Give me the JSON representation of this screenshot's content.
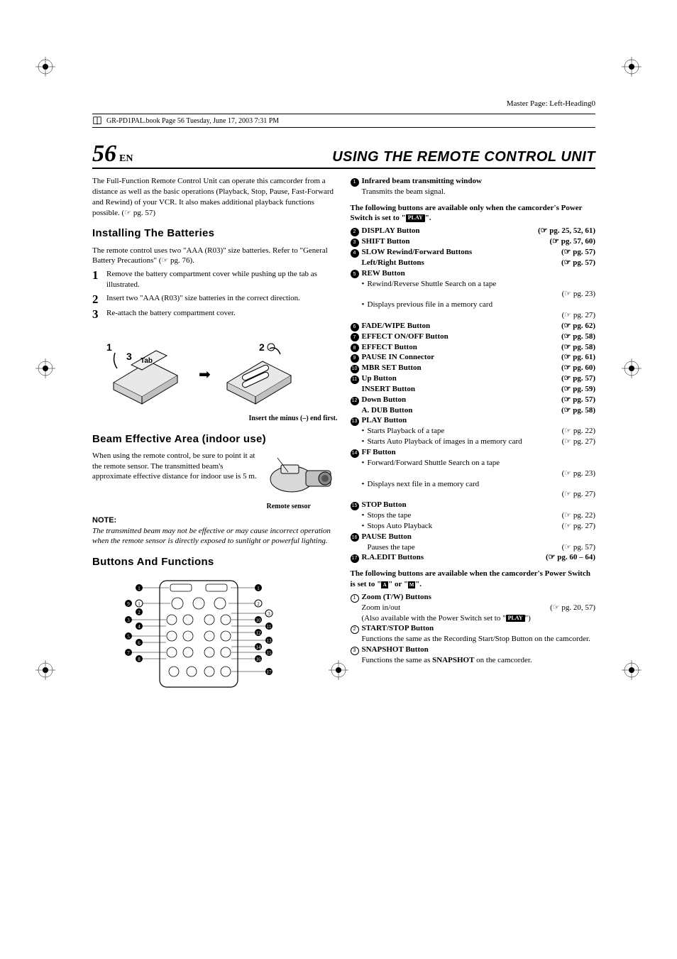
{
  "master_page": "Master Page: Left-Heading0",
  "book_line": "GR-PD1PAL.book  Page 56  Tuesday, June 17, 2003  7:31 PM",
  "page_number": "56",
  "page_lang": "EN",
  "header_title": "USING THE REMOTE CONTROL UNIT",
  "intro": "The Full-Function Remote Control Unit can operate this camcorder from a distance as well as the basic operations (Playback, Stop, Pause, Fast-Forward and Rewind) of your VCR. It also makes additional playback functions possible. (☞ pg. 57)",
  "sec_install": "Installing The Batteries",
  "install_p": "The remote control uses two \"AAA (R03)\" size batteries. Refer to \"General Battery Precautions\" (☞ pg. 76).",
  "steps": [
    "Remove the battery compartment cover while pushing up the tab as illustrated.",
    "Insert two \"AAA (R03)\" size batteries in the correct direction.",
    "Re-attach the battery compartment cover."
  ],
  "fig1_labels": {
    "n1": "1",
    "n2": "2",
    "n3": "3",
    "tab": "Tab"
  },
  "fig1_caption": "Insert the minus (–) end first.",
  "sec_beam": "Beam Effective Area (indoor use)",
  "beam_p": "When using the remote control, be sure to point it at the remote sensor. The transmitted beam's approximate effective distance for indoor use is 5 m.",
  "beam_caption": "Remote sensor",
  "note_h": "NOTE:",
  "note_p": "The transmitted beam may not be effective or may cause incorrect operation when the remote sensor is directly exposed to sunlight or powerful lighting.",
  "sec_btns": "Buttons And Functions",
  "right_item1_label": "Infrared beam transmitting window",
  "right_item1_sub": "Transmits the beam signal.",
  "section2_intro_a": "The following buttons are available only when the camcorder's Power Switch is set to \"",
  "section2_intro_b": "\".",
  "play_text": "PLAY",
  "btns": [
    {
      "n": "2",
      "label": "DISPLAY Button",
      "ref": "(☞ pg. 25, 52, 61)"
    },
    {
      "n": "3",
      "label": "SHIFT Button",
      "ref": "(☞ pg. 57, 60)"
    },
    {
      "n": "4",
      "label": "SLOW Rewind/Forward Buttons",
      "ref": "(☞ pg. 57)"
    },
    {
      "n": "",
      "label": "Left/Right Buttons",
      "ref": "(☞ pg. 57)",
      "noNum": true
    }
  ],
  "rew_label": "REW Button",
  "rew_sub1": "Rewind/Reverse Shuttle Search on a tape",
  "rew_ref1": "(☞ pg. 23)",
  "rew_sub2": "Displays previous file in a memory card",
  "rew_ref2": "(☞ pg. 27)",
  "btns2": [
    {
      "n": "6",
      "label": "FADE/WIPE Button",
      "ref": "(☞ pg. 62)"
    },
    {
      "n": "7",
      "label": "EFFECT ON/OFF Button",
      "ref": "(☞ pg. 58)"
    },
    {
      "n": "8",
      "label": "EFFECT Button",
      "ref": "(☞ pg. 58)"
    },
    {
      "n": "9",
      "label": "PAUSE IN Connector",
      "ref": "(☞ pg. 61)"
    },
    {
      "n": "10",
      "label": "MBR SET Button",
      "ref": "(☞ pg. 60)"
    },
    {
      "n": "11",
      "label": "Up Button",
      "ref": "(☞ pg. 57)"
    },
    {
      "n": "",
      "label": "INSERT Button",
      "ref": "(☞ pg. 59)",
      "noNum": true
    },
    {
      "n": "12",
      "label": "Down Button",
      "ref": "(☞ pg. 57)"
    },
    {
      "n": "",
      "label": "A. DUB Button",
      "ref": "(☞ pg. 58)",
      "noNum": true
    }
  ],
  "play_label": "PLAY Button",
  "play_sub1": "Starts Playback of a tape",
  "play_ref1": "(☞ pg. 22)",
  "play_sub2": "Starts Auto Playback of images in a memory card",
  "play_ref2": "(☞ pg. 27)",
  "ff_label": "FF Button",
  "ff_sub1": "Forward/Forward Shuttle Search on a tape",
  "ff_ref1": "(☞ pg. 23)",
  "ff_sub2": "Displays next file in a memory card",
  "ff_ref2": "(☞ pg. 27)",
  "stop_label": "STOP Button",
  "stop_sub1": "Stops the tape",
  "stop_ref1": "(☞ pg. 22)",
  "stop_sub2": "Stops Auto Playback",
  "stop_ref2": "(☞ pg. 27)",
  "pause_label": "PAUSE Button",
  "pause_sub": "Pauses the tape",
  "pause_ref": "(☞ pg. 57)",
  "raedit_label": "R.A.EDIT Buttons",
  "raedit_ref": "(☞ pg. 60 – 64)",
  "section3_intro_a": "The following buttons are available when the camcorder's Power Switch is set to \"",
  "section3_intro_b": "\" or \"",
  "section3_intro_c": "\".",
  "badge_a": "A",
  "badge_m": "M",
  "zoom_label": "Zoom (T/W) Buttons",
  "zoom_sub1": "Zoom in/out",
  "zoom_ref1": "(☞ pg. 20, 57)",
  "zoom_sub2a": "(Also available with the Power Switch set to \"",
  "zoom_sub2b": "\")",
  "ss_label": "START/STOP Button",
  "ss_sub": "Functions the same as the Recording Start/Stop Button on the camcorder.",
  "snap_label": "SNAPSHOT Button",
  "snap_sub_a": "Functions the same as ",
  "snap_sub_b": "SNAPSHOT",
  "snap_sub_c": " on the camcorder."
}
